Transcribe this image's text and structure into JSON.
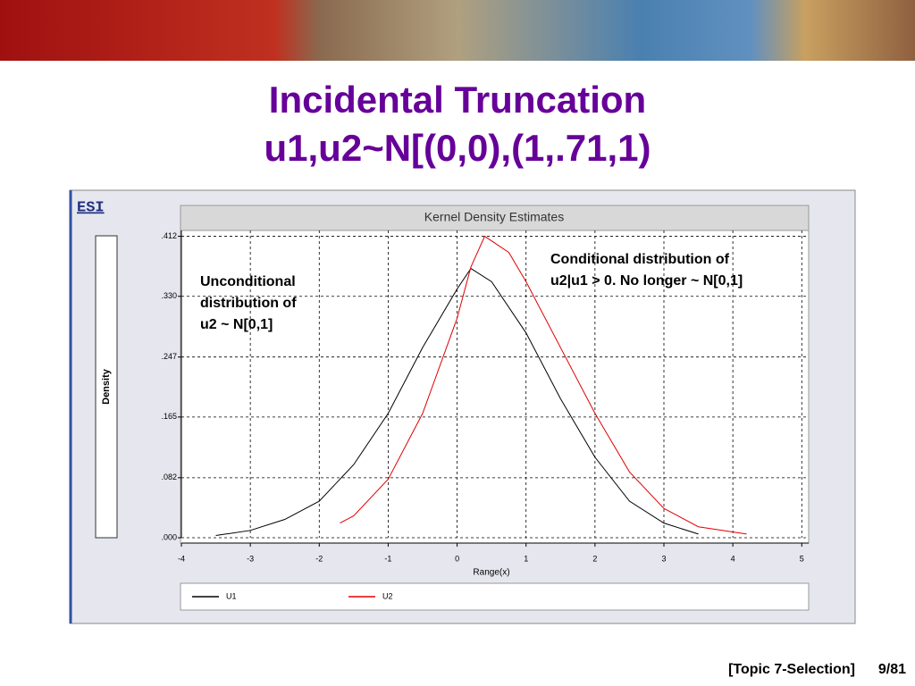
{
  "slide": {
    "title_lines": [
      "Incidental Truncation",
      "u1,u2~N[(0,0),(1,.71,1)"
    ],
    "logo": "ESI",
    "footer": "[Topic 7-Selection]",
    "page": "9/81"
  },
  "chart_data": {
    "type": "line",
    "title": "Kernel Density Estimates",
    "x_label": "Range(x)",
    "y_label": "Density",
    "xlim": [
      -4,
      5.1
    ],
    "ylim": [
      0,
      0.42
    ],
    "xticks": [
      -4,
      -3,
      -2,
      -1,
      0,
      1,
      2,
      3,
      4,
      5
    ],
    "yticks": [
      {
        "value": 0,
        "label": ".000"
      },
      {
        "value": 0.082,
        "label": ".082"
      },
      {
        "value": 0.165,
        "label": ".165"
      },
      {
        "value": 0.247,
        "label": ".247"
      },
      {
        "value": 0.33,
        "label": ".330"
      },
      {
        "value": 0.412,
        "label": ".412"
      }
    ],
    "grid": true,
    "series": [
      {
        "name": "U1",
        "color": "#000000",
        "x": [
          -3.5,
          -3,
          -2.5,
          -2,
          -1.5,
          -1,
          -0.5,
          0,
          0.2,
          0.5,
          1,
          1.5,
          2,
          2.5,
          3,
          3.5
        ],
        "values": [
          0.003,
          0.01,
          0.025,
          0.05,
          0.1,
          0.17,
          0.26,
          0.34,
          0.368,
          0.35,
          0.28,
          0.19,
          0.11,
          0.05,
          0.02,
          0.005
        ]
      },
      {
        "name": "U2",
        "color": "#e00000",
        "x": [
          -1.7,
          -1.5,
          -1,
          -0.5,
          0,
          0.2,
          0.4,
          0.75,
          1,
          1.5,
          2,
          2.5,
          3,
          3.5,
          4.2
        ],
        "values": [
          0.02,
          0.03,
          0.08,
          0.17,
          0.3,
          0.37,
          0.412,
          0.39,
          0.35,
          0.26,
          0.17,
          0.09,
          0.04,
          0.015,
          0.005
        ]
      }
    ],
    "annotations": [
      "Unconditional distribution of u2 ~ N[0,1]",
      "Conditional distribution of u2|u1 > 0. No longer ~ N[0,1]"
    ]
  }
}
